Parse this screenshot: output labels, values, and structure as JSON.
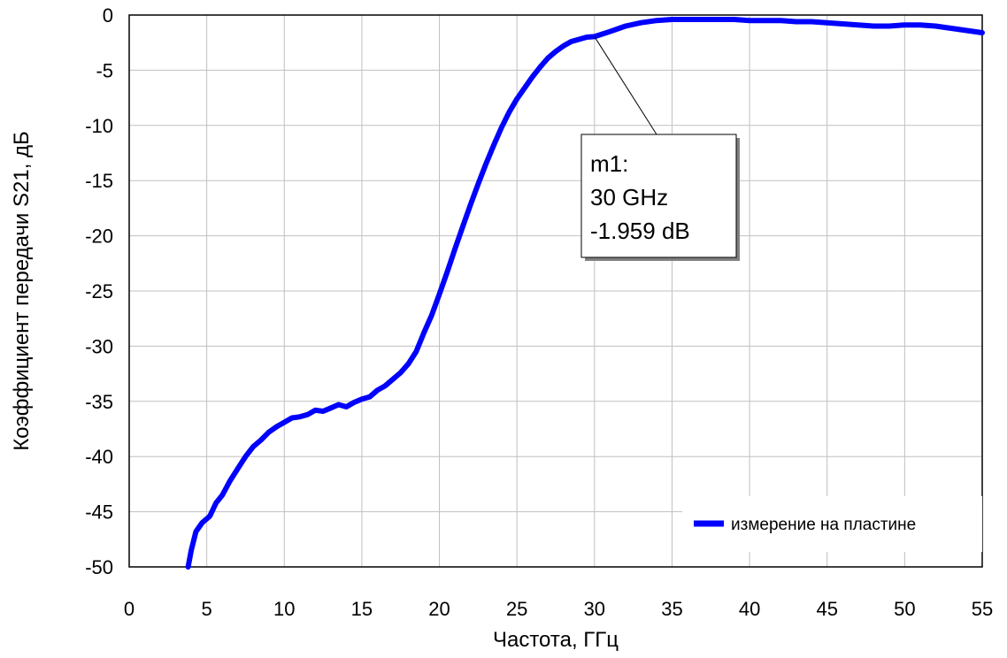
{
  "chart_data": {
    "type": "line",
    "xlabel": "Частота, ГГц",
    "ylabel": "Коэффициент передачи S21, дБ",
    "xlim": [
      0,
      55
    ],
    "ylim": [
      -50,
      0
    ],
    "x_ticks": [
      "0",
      "5",
      "10",
      "15",
      "20",
      "25",
      "30",
      "35",
      "40",
      "45",
      "50",
      "55"
    ],
    "y_ticks": [
      "0",
      "-5",
      "-10",
      "-15",
      "-20",
      "-25",
      "-30",
      "-35",
      "-40",
      "-45",
      "-50"
    ],
    "grid": true,
    "legend_position": "bottom-right",
    "series": [
      {
        "name": "измерение на пластине",
        "color": "#0000ff",
        "x": [
          3.8,
          4.0,
          4.3,
          4.7,
          5.2,
          5.6,
          6.0,
          6.5,
          7.0,
          7.5,
          8.0,
          8.5,
          9.0,
          9.5,
          10.0,
          10.5,
          11.0,
          11.5,
          12.0,
          12.5,
          13.0,
          13.5,
          14.0,
          14.5,
          15.0,
          15.5,
          16.0,
          16.5,
          17.0,
          17.5,
          18.0,
          18.5,
          19.0,
          19.5,
          20.0,
          20.5,
          21.0,
          21.5,
          22.0,
          22.5,
          23.0,
          23.5,
          24.0,
          24.5,
          25.0,
          25.5,
          26.0,
          26.5,
          27.0,
          27.5,
          28.0,
          28.5,
          29.0,
          29.5,
          30.0,
          31.0,
          32.0,
          33.0,
          34.0,
          35.0,
          36.0,
          37.0,
          38.0,
          39.0,
          40.0,
          41.0,
          42.0,
          43.0,
          44.0,
          45.0,
          46.0,
          47.0,
          48.0,
          49.0,
          50.0,
          51.0,
          52.0,
          53.0,
          54.0,
          55.0
        ],
        "values": [
          -50.0,
          -48.5,
          -46.8,
          -46.0,
          -45.4,
          -44.2,
          -43.5,
          -42.2,
          -41.1,
          -40.0,
          -39.1,
          -38.5,
          -37.8,
          -37.3,
          -36.9,
          -36.5,
          -36.4,
          -36.2,
          -35.8,
          -35.9,
          -35.6,
          -35.3,
          -35.5,
          -35.1,
          -34.8,
          -34.6,
          -34.0,
          -33.6,
          -33.0,
          -32.4,
          -31.6,
          -30.5,
          -28.8,
          -27.2,
          -25.3,
          -23.3,
          -21.2,
          -19.2,
          -17.2,
          -15.3,
          -13.5,
          -11.8,
          -10.2,
          -8.8,
          -7.6,
          -6.6,
          -5.6,
          -4.7,
          -3.9,
          -3.3,
          -2.8,
          -2.4,
          -2.2,
          -2.0,
          -1.959,
          -1.5,
          -1.0,
          -0.7,
          -0.5,
          -0.4,
          -0.4,
          -0.4,
          -0.4,
          -0.4,
          -0.5,
          -0.5,
          -0.5,
          -0.6,
          -0.6,
          -0.7,
          -0.8,
          -0.9,
          -1.0,
          -1.0,
          -0.9,
          -0.9,
          -1.0,
          -1.2,
          -1.4,
          -1.6
        ]
      }
    ],
    "marker": {
      "label": "m1",
      "x": 30,
      "y": -1.959,
      "lines": [
        "m1:",
        "30 GHz",
        "-1.959 dB"
      ]
    }
  }
}
